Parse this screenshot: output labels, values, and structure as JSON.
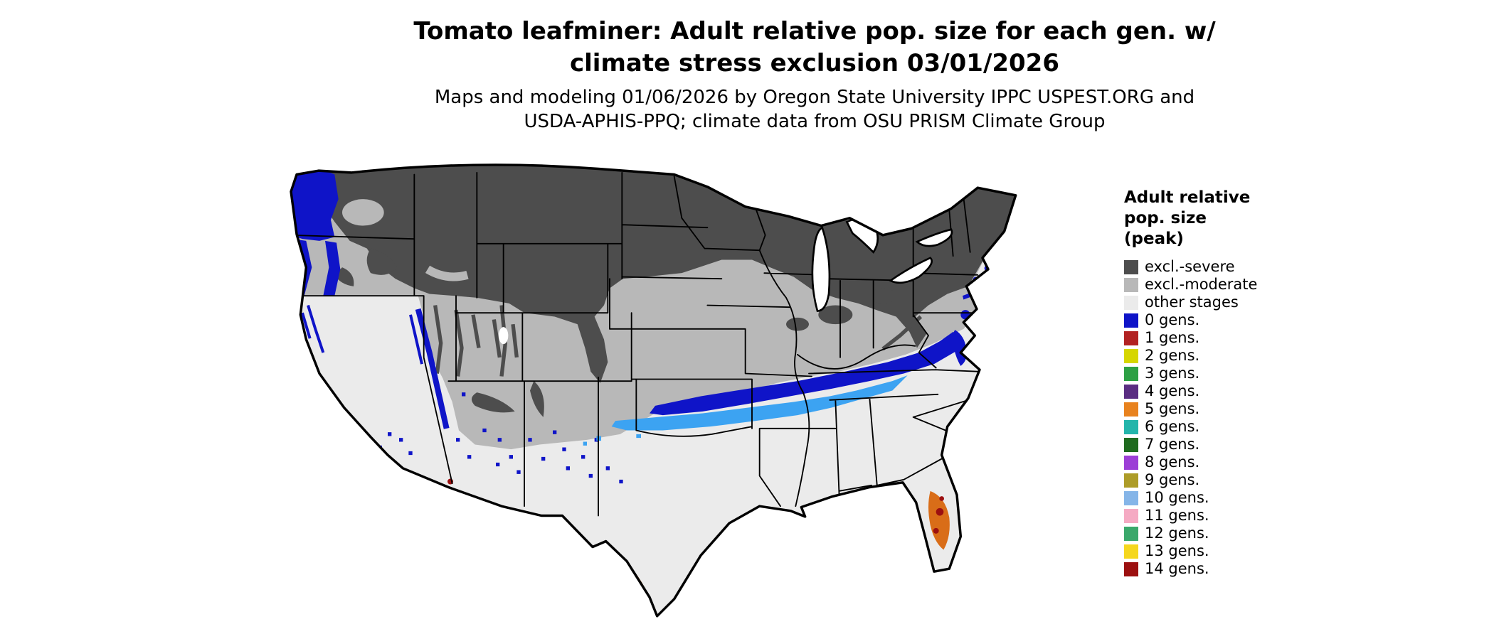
{
  "title": {
    "line1": "Tomato leafminer: Adult relative pop. size for each gen. w/",
    "line2": "climate stress exclusion 03/01/2026"
  },
  "subtitle": {
    "line1": "Maps and modeling 01/06/2026 by Oregon State University IPPC USPEST.ORG and",
    "line2": "USDA-APHIS-PPQ; climate data from OSU PRISM Climate Group"
  },
  "legend": {
    "title_lines": [
      "Adult relative",
      "pop. size",
      "(peak)"
    ],
    "entries": [
      {
        "label": "excl.-severe",
        "color": "#4d4d4d"
      },
      {
        "label": "excl.-moderate",
        "color": "#b8b8b8"
      },
      {
        "label": "other stages",
        "color": "#ebebeb"
      },
      {
        "label": "0 gens.",
        "color": "#0f14c8"
      },
      {
        "label": "1 gens.",
        "color": "#b22222"
      },
      {
        "label": "2 gens.",
        "color": "#d6d600"
      },
      {
        "label": "3 gens.",
        "color": "#2da044"
      },
      {
        "label": "4 gens.",
        "color": "#5a2d82"
      },
      {
        "label": "5 gens.",
        "color": "#e8821e"
      },
      {
        "label": "6 gens.",
        "color": "#23b5ab"
      },
      {
        "label": "7 gens.",
        "color": "#1f6b1f"
      },
      {
        "label": "8 gens.",
        "color": "#9c3fd6"
      },
      {
        "label": "9 gens.",
        "color": "#ad9c28"
      },
      {
        "label": "10 gens.",
        "color": "#85b5e8"
      },
      {
        "label": "11 gens.",
        "color": "#f5aac3"
      },
      {
        "label": "12 gens.",
        "color": "#3aa86b"
      },
      {
        "label": "13 gens.",
        "color": "#f5d71e"
      },
      {
        "label": "14 gens.",
        "color": "#9c1010"
      }
    ]
  },
  "map": {
    "colors": {
      "water": "#ffffff",
      "outline": "#000000",
      "other": "#ebebeb",
      "moderate": "#b8b8b8",
      "severe": "#4d4d4d",
      "gens0": "#0f14c8",
      "gens10": "#3ca3f2",
      "orange": "#d96d18",
      "red": "#9c1010"
    }
  }
}
